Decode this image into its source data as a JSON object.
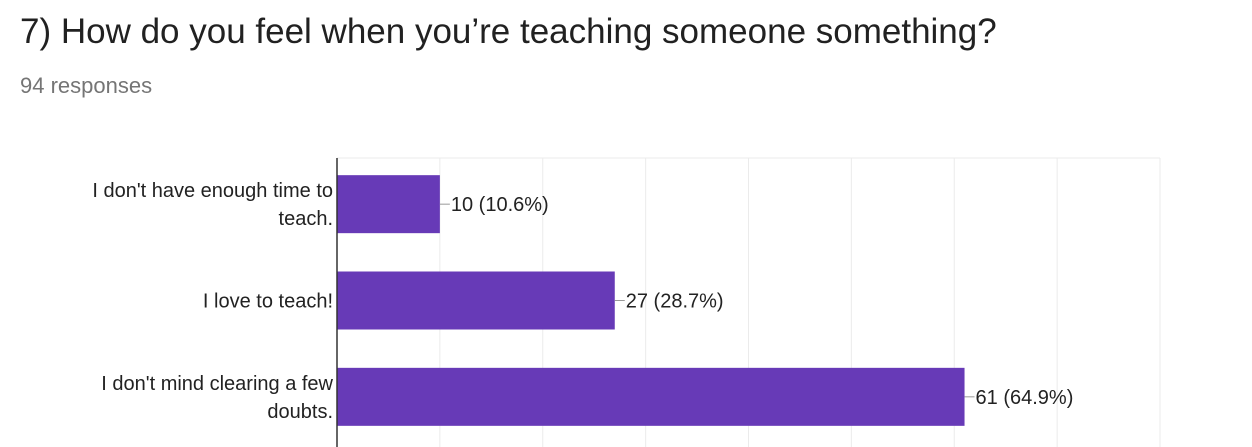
{
  "question": {
    "title": "7) How do you feel when you’re teaching someone something?",
    "responses": "94 responses"
  },
  "colors": {
    "bar": "#673ab7",
    "grid": "#ebebeb",
    "axis": "#333333",
    "leader": "#999999"
  },
  "chart_data": {
    "type": "bar",
    "orientation": "horizontal",
    "categories": [
      [
        "I don't have enough time to",
        "teach."
      ],
      [
        "I love to teach!"
      ],
      [
        "I don't mind clearing a few",
        "doubts."
      ]
    ],
    "values": [
      10,
      27,
      61
    ],
    "data_labels": [
      "10 (10.6%)",
      "27 (28.7%)",
      "61 (64.9%)"
    ],
    "xlim": [
      0,
      80
    ],
    "grid": true
  }
}
